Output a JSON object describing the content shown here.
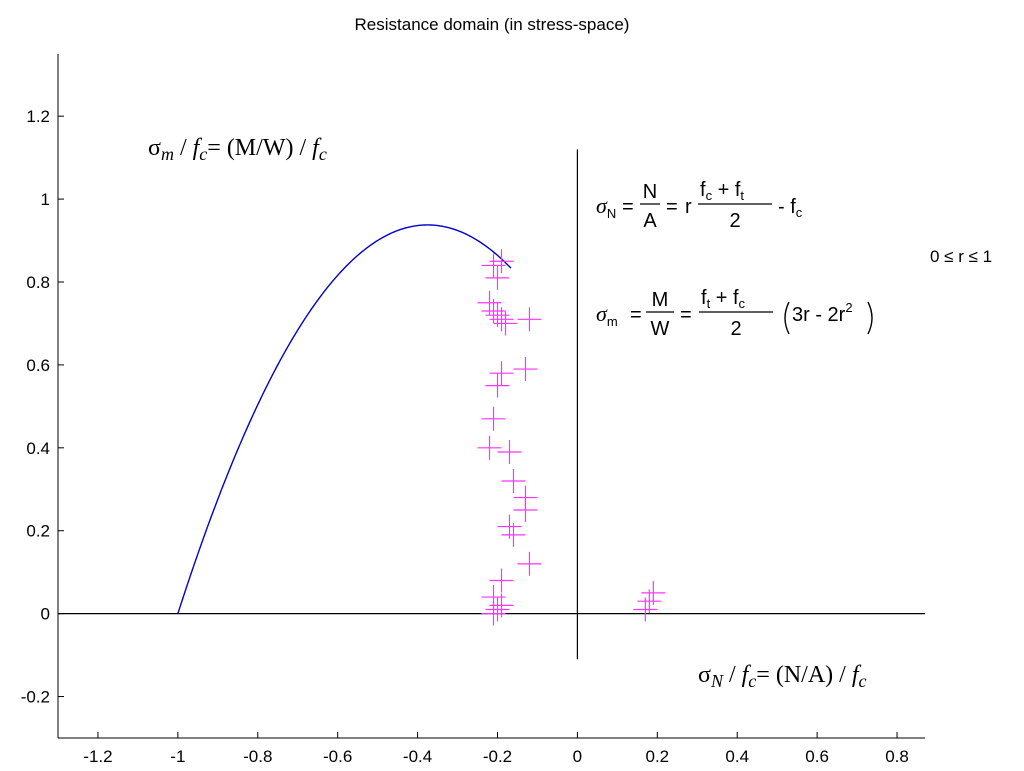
{
  "chart_data": {
    "type": "scatter",
    "title": "Resistance domain (in stress-space)",
    "xlim": [
      -1.3,
      0.87
    ],
    "ylim": [
      -0.3,
      1.35
    ],
    "x_ticks": [
      -1.2,
      -1,
      -0.8,
      -0.6,
      -0.4,
      -0.2,
      0,
      0.2,
      0.4,
      0.6,
      0.8
    ],
    "x_tick_labels": [
      "-1.2",
      "-1",
      "-0.8",
      "-0.6",
      "-0.4",
      "-0.2",
      "0",
      "0.2",
      "0.4",
      "0.6",
      "0.8"
    ],
    "y_ticks": [
      -0.2,
      0,
      0.2,
      0.4,
      0.6,
      0.8,
      1,
      1.2
    ],
    "y_tick_labels": [
      "-0.2",
      "0",
      "0.2",
      "0.4",
      "0.6",
      "0.8",
      "1",
      "1.2"
    ],
    "grid": false,
    "ft_over_fc": 0.667,
    "series": [
      {
        "type": "line",
        "color": "#0000cc",
        "r_range": [
          0,
          1
        ]
      },
      {
        "type": "scatter",
        "marker": "plus",
        "color": "#ff33ff",
        "x": [
          -0.21,
          -0.19,
          -0.2,
          -0.22,
          -0.2,
          -0.18,
          -0.21,
          -0.19,
          -0.12,
          -0.13,
          -0.19,
          -0.2,
          -0.21,
          -0.22,
          -0.17,
          -0.16,
          -0.13,
          -0.13,
          -0.16,
          -0.17,
          -0.12,
          -0.19,
          -0.21,
          -0.19,
          -0.2,
          -0.21,
          0.18,
          0.19,
          0.17
        ],
        "y": [
          0.84,
          0.85,
          0.81,
          0.75,
          0.72,
          0.7,
          0.73,
          0.71,
          0.71,
          0.59,
          0.58,
          0.55,
          0.47,
          0.4,
          0.39,
          0.32,
          0.28,
          0.25,
          0.19,
          0.21,
          0.12,
          0.08,
          0.04,
          0.02,
          0.01,
          0.0,
          0.03,
          0.05,
          0.01
        ]
      }
    ],
    "annotations": {
      "ylabel_sigma": "σ",
      "ylabel_sub": "m",
      "ylabel_mid": " / ",
      "ylabel_f": "f",
      "ylabel_fsub": "c",
      "ylabel_expr": "= (M/W) / ",
      "xlabel_sigma": "σ",
      "xlabel_sub": "N",
      "xlabel_mid": " / ",
      "xlabel_f": "f",
      "xlabel_fsub": "c",
      "xlabel_expr": "= (N/A) / ",
      "eq1_lhs": "σ",
      "eq1_lhs_sub": "N",
      "eq1_frac1_num": "N",
      "eq1_frac1_den": "A",
      "eq1_eq": "=",
      "eq1_r": "r",
      "eq1_frac2_num": "f",
      "eq1_frac2_num_sub1": "c",
      "eq1_frac2_plus": " + f",
      "eq1_frac2_num_sub2": "t",
      "eq1_frac2_den": "2",
      "eq1_tail": "- f",
      "eq1_tail_sub": "c",
      "eq2_lhs": "σ",
      "eq2_lhs_sub": "m",
      "eq2_frac1_num": "M",
      "eq2_frac1_den": "W",
      "eq2_eq": "=",
      "eq2_frac2_num": "f",
      "eq2_frac2_num_sub1": "t",
      "eq2_frac2_plus": " + f",
      "eq2_frac2_num_sub2": "c",
      "eq2_frac2_den": "2",
      "eq2_tail": "3r - 2r",
      "eq2_tail_sup": "2",
      "range_text": "0 ≤ r ≤ 1"
    }
  }
}
